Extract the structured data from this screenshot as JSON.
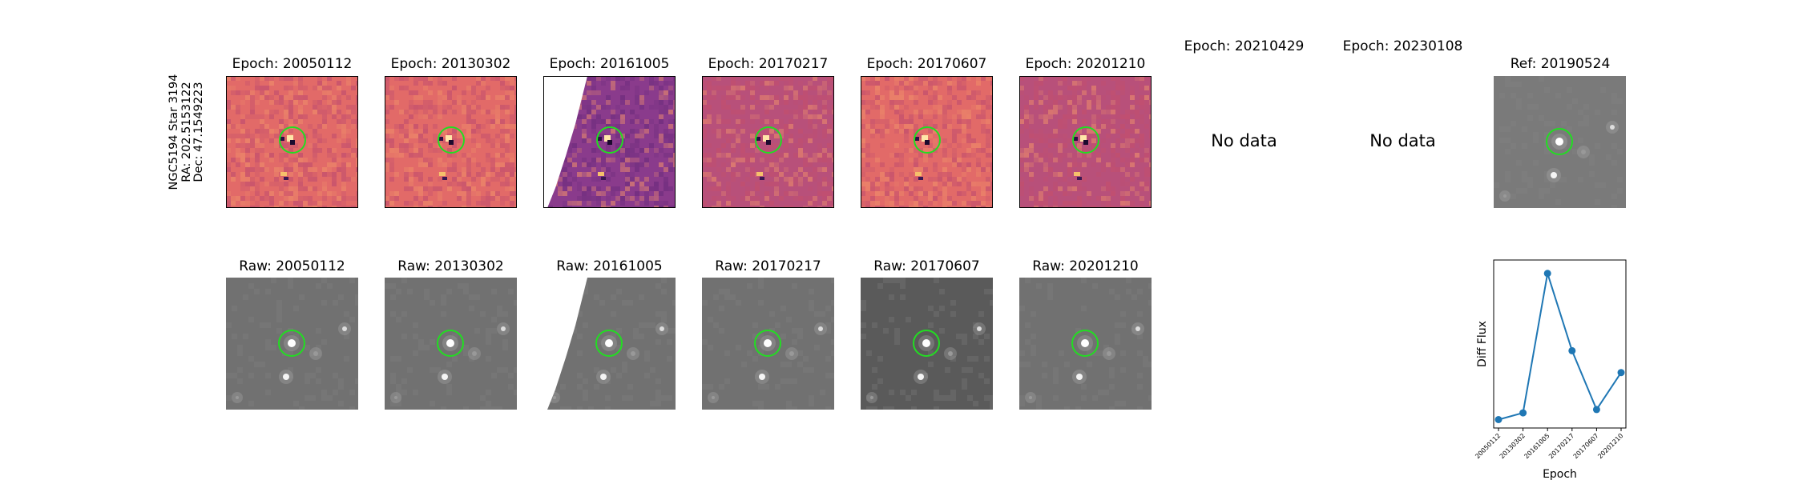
{
  "object": {
    "name": "NGC5194 Star 3194",
    "ra": "RA: 202.5153122",
    "dec": "Dec: 47.1549223"
  },
  "colors": {
    "circle": "#22dd22",
    "line": "#1f77b4",
    "diff_warm": "#e26a68",
    "diff_purple": "#8a3b8c",
    "raw_gray": "#717171"
  },
  "diff_panels": [
    {
      "title": "Epoch: 20050112",
      "has_data": true,
      "tint": "warm"
    },
    {
      "title": "Epoch: 20130302",
      "has_data": true,
      "tint": "warm"
    },
    {
      "title": "Epoch: 20161005",
      "has_data": true,
      "tint": "purple"
    },
    {
      "title": "Epoch: 20170217",
      "has_data": true,
      "tint": "mid"
    },
    {
      "title": "Epoch: 20170607",
      "has_data": true,
      "tint": "warm"
    },
    {
      "title": "Epoch: 20201210",
      "has_data": true,
      "tint": "mid"
    },
    {
      "title": "Epoch: 20210429",
      "has_data": false,
      "nodata_text": "No data"
    },
    {
      "title": "Epoch: 20230108",
      "has_data": false,
      "nodata_text": "No data"
    }
  ],
  "ref_panel": {
    "title": "Ref: 20190524"
  },
  "raw_panels": [
    {
      "title": "Raw: 20050112"
    },
    {
      "title": "Raw: 20130302"
    },
    {
      "title": "Raw: 20161005"
    },
    {
      "title": "Raw: 20170217"
    },
    {
      "title": "Raw: 20170607"
    },
    {
      "title": "Raw: 20201210"
    }
  ],
  "chart_data": {
    "type": "line",
    "title": "",
    "xlabel": "Epoch",
    "ylabel": "Diff Flux",
    "categories": [
      "20050112",
      "20130302",
      "20161005",
      "20170217",
      "20170607",
      "20201210"
    ],
    "values": [
      0.05,
      0.09,
      0.92,
      0.46,
      0.11,
      0.33
    ],
    "ylim": [
      0,
      1
    ],
    "y_ticks_labeled": false,
    "marker": "circle",
    "grid": false
  }
}
